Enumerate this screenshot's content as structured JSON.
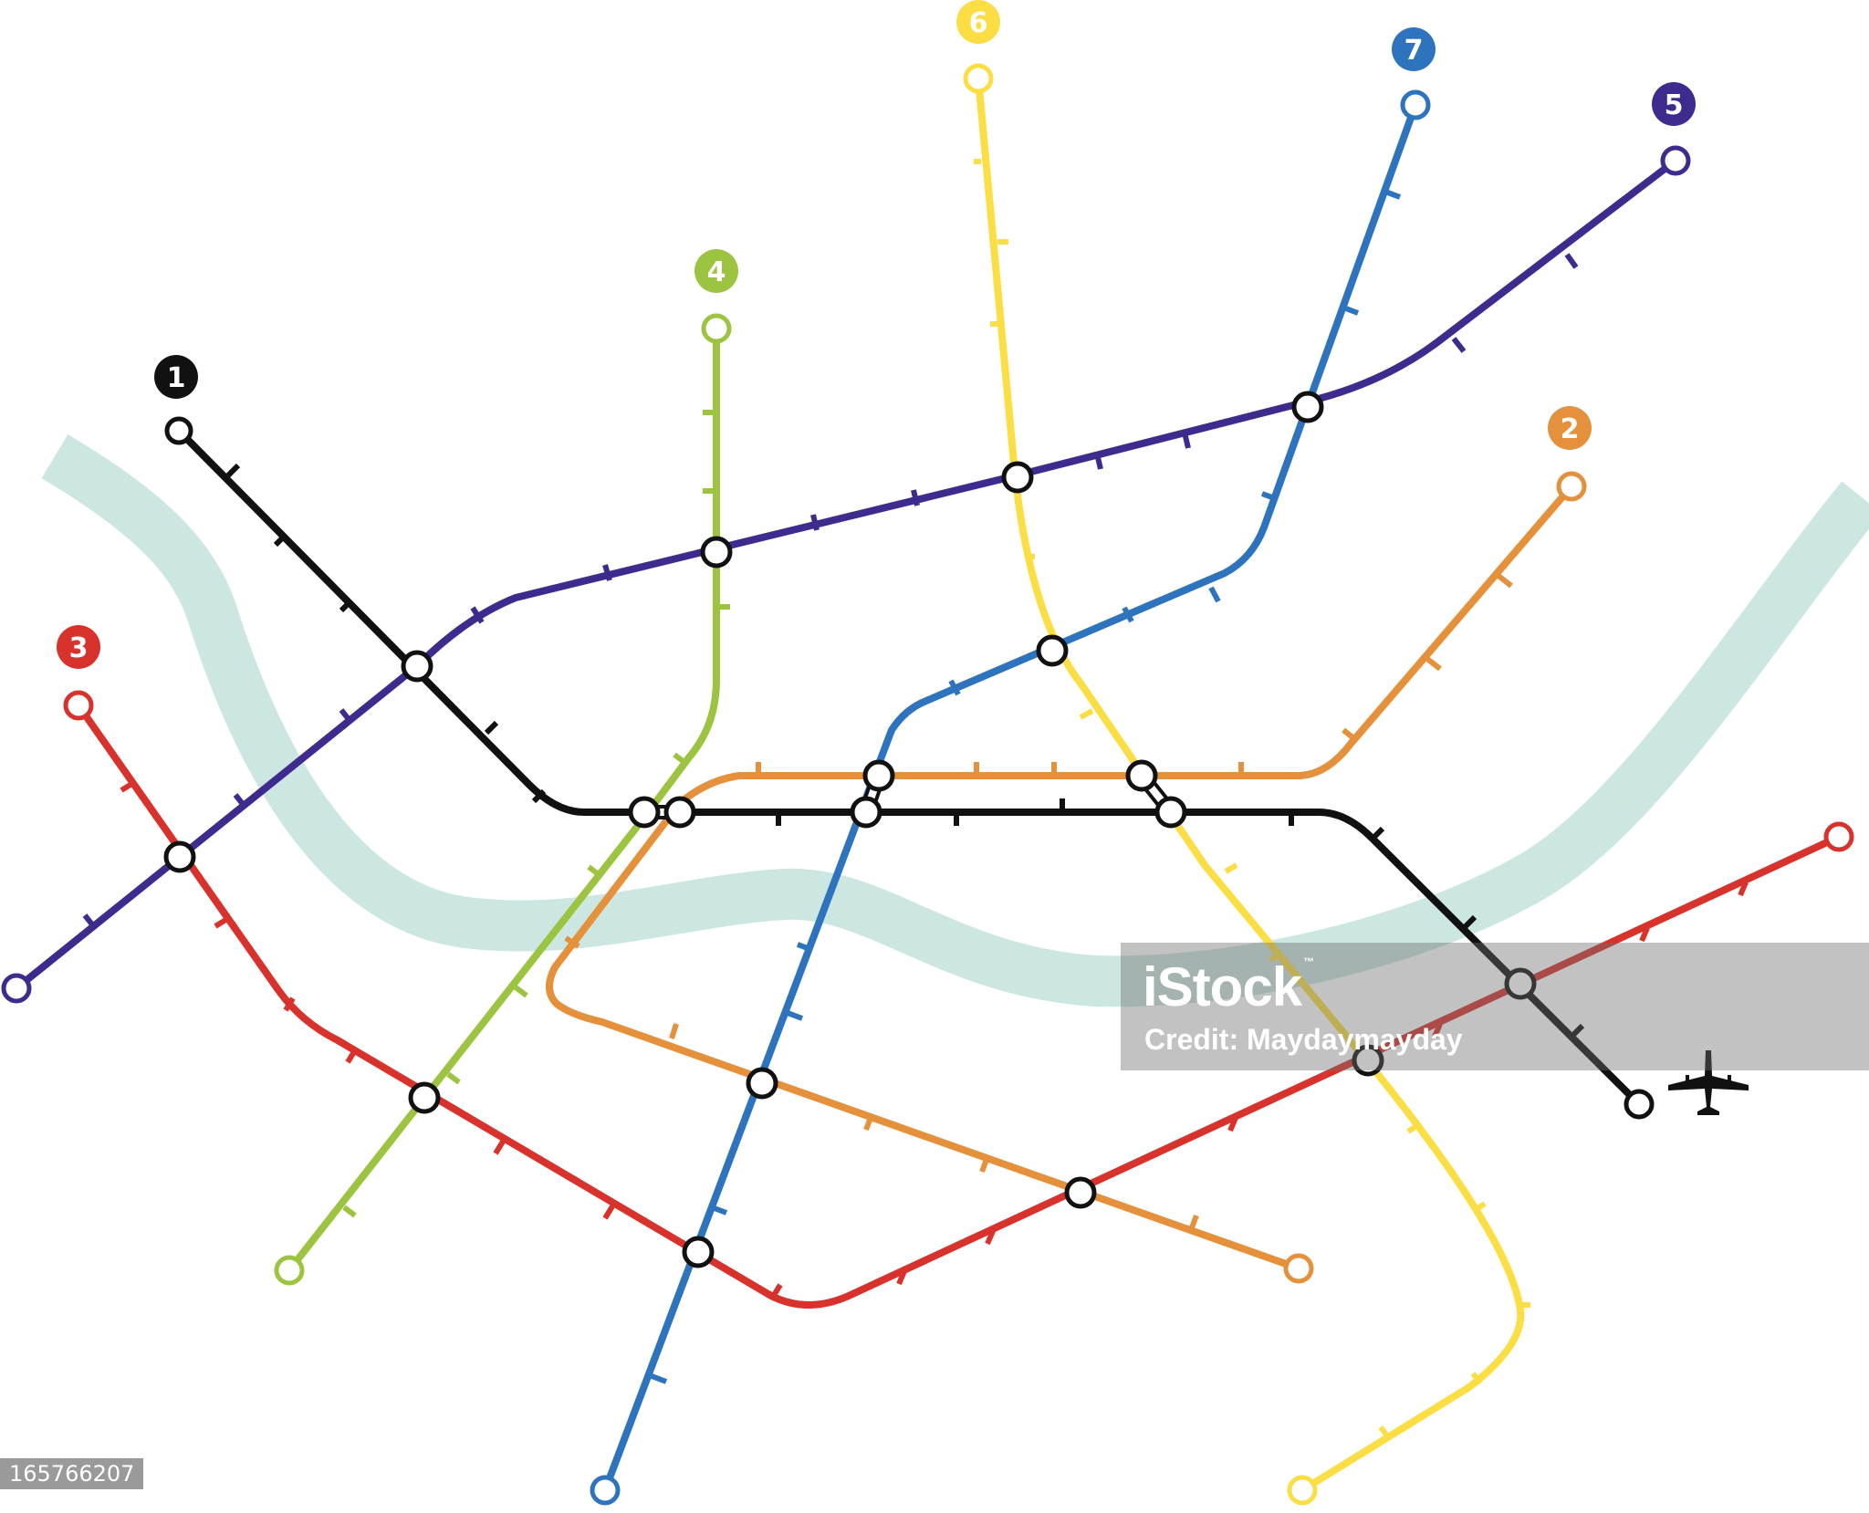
{
  "lines": [
    {
      "id": "1",
      "label": "1",
      "color": "#111111"
    },
    {
      "id": "2",
      "label": "2",
      "color": "#e5903b"
    },
    {
      "id": "3",
      "label": "3",
      "color": "#d7322c"
    },
    {
      "id": "4",
      "label": "4",
      "color": "#9dc441"
    },
    {
      "id": "5",
      "label": "5",
      "color": "#3f2b8d"
    },
    {
      "id": "6",
      "label": "6",
      "color": "#fbdd44"
    },
    {
      "id": "7",
      "label": "7",
      "color": "#2e73bd"
    }
  ],
  "river": {
    "color": "#cce6e1"
  },
  "airport": {
    "icon": "airplane-icon"
  },
  "watermark": {
    "brand": "iStock",
    "trademark": "™",
    "credit": "Credit: Maydaymayday"
  },
  "image_id": "165766207"
}
